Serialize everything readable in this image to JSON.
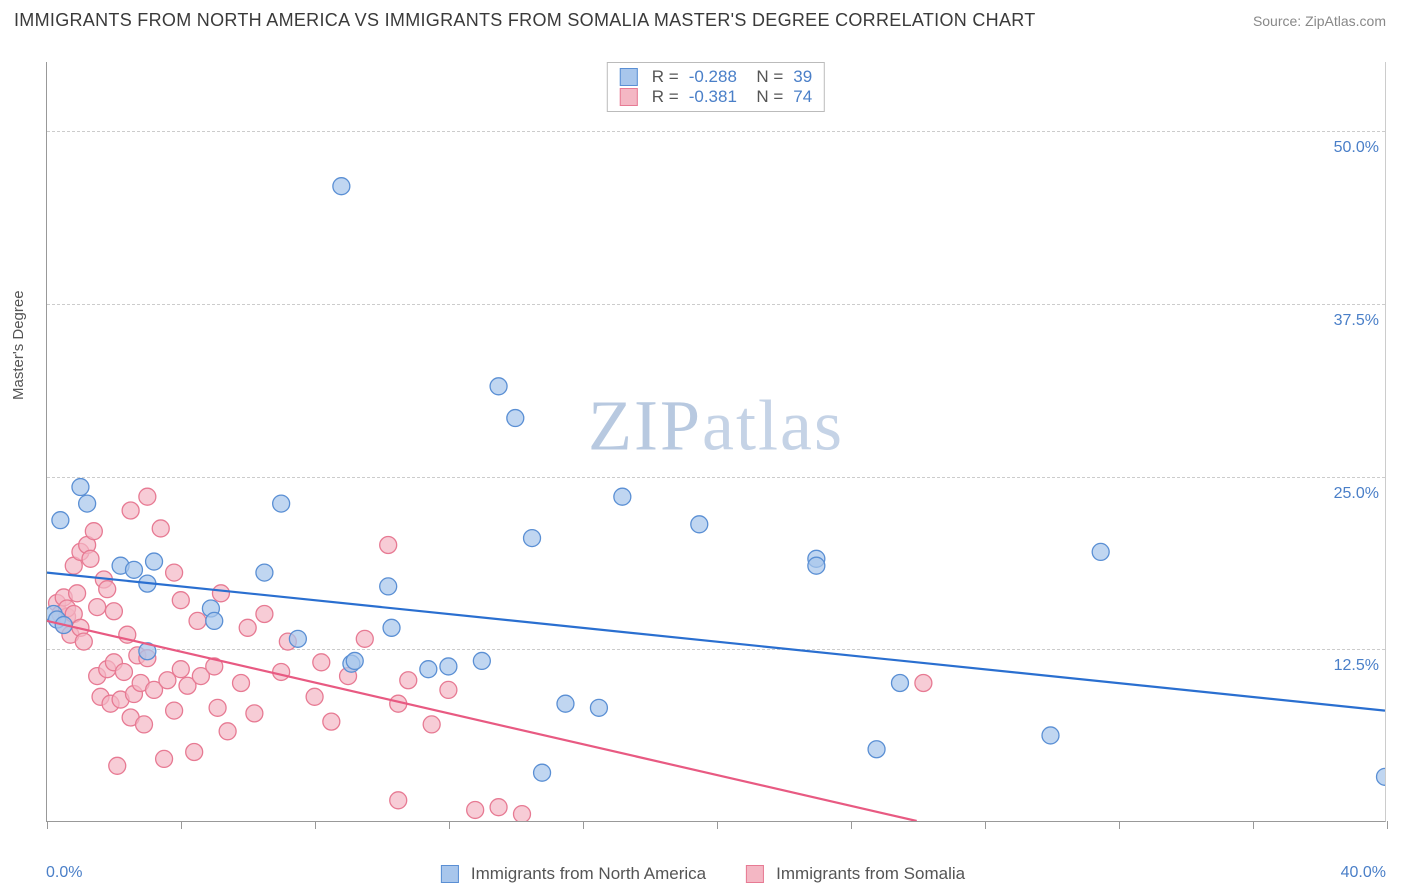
{
  "header": {
    "title": "IMMIGRANTS FROM NORTH AMERICA VS IMMIGRANTS FROM SOMALIA MASTER'S DEGREE CORRELATION CHART",
    "source": "Source: ZipAtlas.com"
  },
  "chart": {
    "type": "scatter",
    "ylabel": "Master's Degree",
    "xlim": [
      0,
      40
    ],
    "ylim": [
      0,
      55
    ],
    "y_ticks": [
      12.5,
      25.0,
      37.5,
      50.0
    ],
    "y_tick_labels": [
      "12.5%",
      "25.0%",
      "37.5%",
      "50.0%"
    ],
    "x_ticks": [
      0,
      4,
      8,
      12,
      16,
      20,
      24,
      28,
      32,
      36,
      40
    ],
    "x_label_min": "0.0%",
    "x_label_max": "40.0%",
    "background_color": "#ffffff",
    "grid_color": "#cccccc",
    "watermark": "ZIPatlas",
    "series": [
      {
        "name": "Immigrants from North America",
        "marker_fill": "#a8c6ec",
        "marker_stroke": "#5a8fd4",
        "marker_opacity": 0.72,
        "marker_radius": 8.5,
        "line_color": "#2a6fd0",
        "line_width": 2.2,
        "R": "-0.288",
        "N": "39",
        "trend": {
          "x1": 0,
          "y1": 18.0,
          "x2": 40,
          "y2": 8.0
        },
        "points": [
          [
            0.2,
            15.0
          ],
          [
            0.3,
            14.6
          ],
          [
            0.4,
            21.8
          ],
          [
            0.5,
            14.2
          ],
          [
            1.0,
            24.2
          ],
          [
            1.2,
            23.0
          ],
          [
            2.2,
            18.5
          ],
          [
            2.6,
            18.2
          ],
          [
            3.0,
            17.2
          ],
          [
            3.0,
            12.3
          ],
          [
            3.2,
            18.8
          ],
          [
            4.9,
            15.4
          ],
          [
            5.0,
            14.5
          ],
          [
            6.5,
            18.0
          ],
          [
            7.0,
            23.0
          ],
          [
            7.5,
            13.2
          ],
          [
            8.8,
            46.0
          ],
          [
            9.1,
            11.4
          ],
          [
            9.2,
            11.6
          ],
          [
            10.2,
            17.0
          ],
          [
            10.3,
            14.0
          ],
          [
            11.4,
            11.0
          ],
          [
            12.0,
            11.2
          ],
          [
            13.0,
            11.6
          ],
          [
            13.5,
            31.5
          ],
          [
            14.0,
            29.2
          ],
          [
            14.5,
            20.5
          ],
          [
            14.8,
            3.5
          ],
          [
            15.5,
            8.5
          ],
          [
            16.5,
            8.2
          ],
          [
            17.2,
            23.5
          ],
          [
            19.5,
            21.5
          ],
          [
            23.0,
            19.0
          ],
          [
            23.0,
            18.5
          ],
          [
            24.8,
            5.2
          ],
          [
            25.5,
            10.0
          ],
          [
            30.0,
            6.2
          ],
          [
            31.5,
            19.5
          ],
          [
            40.0,
            3.2
          ]
        ]
      },
      {
        "name": "Immigrants from Somalia",
        "marker_fill": "#f4b7c4",
        "marker_stroke": "#e77a93",
        "marker_opacity": 0.7,
        "marker_radius": 8.5,
        "line_color": "#e85a82",
        "line_width": 2.2,
        "R": "-0.381",
        "N": "74",
        "trend": {
          "x1": 0,
          "y1": 14.5,
          "x2": 26,
          "y2": 0
        },
        "points": [
          [
            0.3,
            15.8
          ],
          [
            0.4,
            15.0
          ],
          [
            0.5,
            14.2
          ],
          [
            0.5,
            16.2
          ],
          [
            0.6,
            14.8
          ],
          [
            0.6,
            15.4
          ],
          [
            0.7,
            13.5
          ],
          [
            0.8,
            18.5
          ],
          [
            0.8,
            15.0
          ],
          [
            0.9,
            16.5
          ],
          [
            1.0,
            19.5
          ],
          [
            1.0,
            14.0
          ],
          [
            1.1,
            13.0
          ],
          [
            1.2,
            20.0
          ],
          [
            1.3,
            19.0
          ],
          [
            1.4,
            21.0
          ],
          [
            1.5,
            15.5
          ],
          [
            1.5,
            10.5
          ],
          [
            1.6,
            9.0
          ],
          [
            1.7,
            17.5
          ],
          [
            1.8,
            11.0
          ],
          [
            1.8,
            16.8
          ],
          [
            1.9,
            8.5
          ],
          [
            2.0,
            15.2
          ],
          [
            2.0,
            11.5
          ],
          [
            2.1,
            4.0
          ],
          [
            2.2,
            8.8
          ],
          [
            2.3,
            10.8
          ],
          [
            2.4,
            13.5
          ],
          [
            2.5,
            22.5
          ],
          [
            2.5,
            7.5
          ],
          [
            2.6,
            9.2
          ],
          [
            2.7,
            12.0
          ],
          [
            2.8,
            10.0
          ],
          [
            2.9,
            7.0
          ],
          [
            3.0,
            23.5
          ],
          [
            3.0,
            11.8
          ],
          [
            3.2,
            9.5
          ],
          [
            3.4,
            21.2
          ],
          [
            3.5,
            4.5
          ],
          [
            3.6,
            10.2
          ],
          [
            3.8,
            8.0
          ],
          [
            3.8,
            18.0
          ],
          [
            4.0,
            11.0
          ],
          [
            4.0,
            16.0
          ],
          [
            4.2,
            9.8
          ],
          [
            4.4,
            5.0
          ],
          [
            4.5,
            14.5
          ],
          [
            4.6,
            10.5
          ],
          [
            5.0,
            11.2
          ],
          [
            5.1,
            8.2
          ],
          [
            5.2,
            16.5
          ],
          [
            5.4,
            6.5
          ],
          [
            5.8,
            10.0
          ],
          [
            6.0,
            14.0
          ],
          [
            6.2,
            7.8
          ],
          [
            6.5,
            15.0
          ],
          [
            7.0,
            10.8
          ],
          [
            7.2,
            13.0
          ],
          [
            8.0,
            9.0
          ],
          [
            8.2,
            11.5
          ],
          [
            8.5,
            7.2
          ],
          [
            9.0,
            10.5
          ],
          [
            9.5,
            13.2
          ],
          [
            10.2,
            20.0
          ],
          [
            10.5,
            8.5
          ],
          [
            10.5,
            1.5
          ],
          [
            10.8,
            10.2
          ],
          [
            11.5,
            7.0
          ],
          [
            12.0,
            9.5
          ],
          [
            12.8,
            0.8
          ],
          [
            13.5,
            1.0
          ],
          [
            14.2,
            0.5
          ],
          [
            26.2,
            10.0
          ]
        ]
      }
    ]
  },
  "legend_bottom": {
    "items": [
      {
        "label": "Immigrants from North America",
        "fill": "#a8c6ec",
        "stroke": "#5a8fd4"
      },
      {
        "label": "Immigrants from Somalia",
        "fill": "#f4b7c4",
        "stroke": "#e77a93"
      }
    ]
  }
}
